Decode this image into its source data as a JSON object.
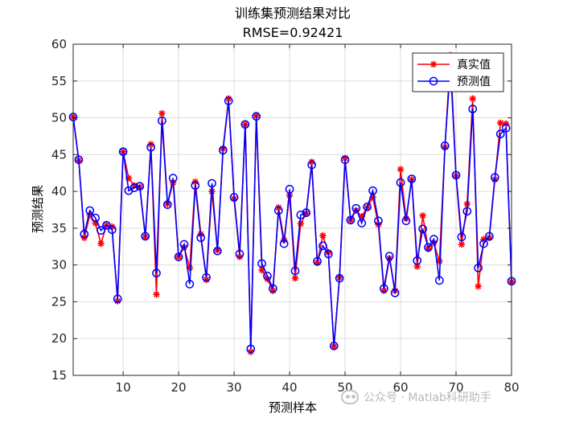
{
  "watermark": "公众号 · Matlab科研助手",
  "chart_data": {
    "type": "line",
    "title": "训练集预测结果对比",
    "subtitle": "RMSE=0.92421",
    "xlabel": "预测样本",
    "ylabel": "预测结果",
    "xlim": [
      1,
      80
    ],
    "ylim": [
      15,
      60
    ],
    "xticks": [
      10,
      20,
      30,
      40,
      50,
      60,
      70,
      80
    ],
    "yticks": [
      15,
      20,
      25,
      30,
      35,
      40,
      45,
      50,
      55,
      60
    ],
    "grid": true,
    "legend_position": "top-right",
    "x": [
      1,
      2,
      3,
      4,
      5,
      6,
      7,
      8,
      9,
      10,
      11,
      12,
      13,
      14,
      15,
      16,
      17,
      18,
      19,
      20,
      21,
      22,
      23,
      24,
      25,
      26,
      27,
      28,
      29,
      30,
      31,
      32,
      33,
      34,
      35,
      36,
      37,
      38,
      39,
      40,
      41,
      42,
      43,
      44,
      45,
      46,
      47,
      48,
      49,
      50,
      51,
      52,
      53,
      54,
      55,
      56,
      57,
      58,
      59,
      60,
      61,
      62,
      63,
      64,
      65,
      66,
      67,
      68,
      69,
      70,
      71,
      72,
      73,
      74,
      75,
      76,
      77,
      78,
      79,
      80
    ],
    "series": [
      {
        "name": "真实值",
        "color": "#ff0000",
        "marker": "asterisk",
        "values": [
          50.1,
          44.2,
          33.7,
          36.8,
          35.7,
          32.9,
          35.4,
          35.2,
          25.1,
          45.4,
          41.8,
          40.8,
          40.6,
          33.8,
          46.4,
          26.0,
          50.6,
          38.3,
          41.2,
          31.1,
          32.4,
          29.6,
          41.3,
          34.2,
          28.0,
          40.0,
          32.0,
          45.8,
          52.6,
          39.0,
          31.1,
          49.1,
          18.2,
          50.3,
          29.3,
          28.1,
          26.5,
          37.8,
          33.4,
          39.5,
          28.2,
          35.6,
          37.0,
          44.0,
          30.3,
          34.0,
          31.7,
          18.9,
          28.3,
          44.5,
          36.1,
          37.4,
          36.6,
          37.8,
          39.2,
          35.5,
          26.5,
          30.9,
          26.5,
          43.0,
          36.3,
          41.6,
          29.8,
          36.7,
          32.2,
          33.0,
          30.5,
          46.0,
          58.5,
          42.1,
          32.8,
          38.3,
          52.6,
          27.1,
          33.5,
          33.7,
          41.6,
          49.3,
          49.2,
          27.7
        ]
      },
      {
        "name": "预测值",
        "color": "#0000ff",
        "marker": "circle",
        "values": [
          50.1,
          44.3,
          34.2,
          37.4,
          36.4,
          34.7,
          35.4,
          34.8,
          25.4,
          45.4,
          40.1,
          40.5,
          40.7,
          33.9,
          46.0,
          28.9,
          49.6,
          38.2,
          41.8,
          31.1,
          32.8,
          27.4,
          40.8,
          33.7,
          28.3,
          41.1,
          31.9,
          45.6,
          52.3,
          39.2,
          31.5,
          49.1,
          18.6,
          50.2,
          30.2,
          28.5,
          26.8,
          37.4,
          32.9,
          40.3,
          29.2,
          36.8,
          37.1,
          43.6,
          30.5,
          32.6,
          31.5,
          19.0,
          28.2,
          44.3,
          36.1,
          37.7,
          35.7,
          37.9,
          40.1,
          36.0,
          26.8,
          31.2,
          26.2,
          41.2,
          36.0,
          41.7,
          30.6,
          34.9,
          32.4,
          33.5,
          27.9,
          46.2,
          57.0,
          42.2,
          33.8,
          37.3,
          51.2,
          29.6,
          32.9,
          33.9,
          41.9,
          47.8,
          48.6,
          27.8
        ]
      }
    ]
  }
}
